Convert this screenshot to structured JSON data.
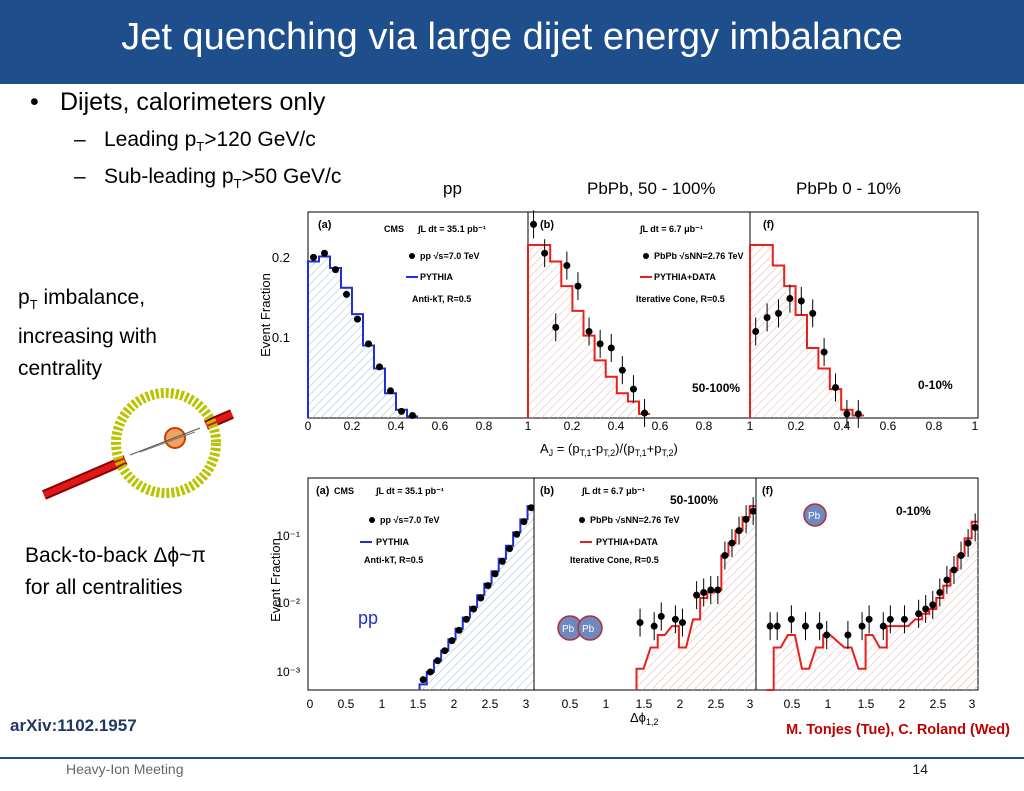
{
  "slide": {
    "title": "Jet quenching via large dijet energy imbalance",
    "bullet_main": "Dijets, calorimeters only",
    "sub1_pre": "Leading p",
    "sub1_sub": "T",
    "sub1_post": ">120 GeV/c",
    "sub2_pre": "Sub-leading p",
    "sub2_sub": "T",
    "sub2_post": ">50 GeV/c",
    "pt_line1_pre": "p",
    "pt_line1_sub": "T",
    "pt_line1_post": " imbalance,",
    "pt_line2": "increasing with",
    "pt_line3": "centrality",
    "b2b_line1": "Back-to-back Δϕ~π",
    "b2b_line2": "for all centralities",
    "col_pp": "pp",
    "col_mid": "PbPb, 50 - 100%",
    "col_cen": "PbPb 0 - 10%",
    "arxiv": "arXiv:1102.1957",
    "authors": "M. Tonjes (Tue), C. Roland (Wed)",
    "footer_left": "Heavy-Ion Meeting",
    "page_number": "14",
    "pp_blue_label": "pp",
    "pbpb_badge": "Pb Pb",
    "pbpb_badge_left": "Pb",
    "pbpb_badge_right": "Pb",
    "pbpb_badge_top": "Pb"
  },
  "colors": {
    "title_bar": "#1f4e8c",
    "arxiv": "#1f3864",
    "authors": "#c00000",
    "pythia_blue": "#1f2fd0",
    "data_red": "#e8201b"
  },
  "chart_data": [
    {
      "type": "histogram",
      "panel": "(a)",
      "texts": [
        "CMS",
        "∫L dt = 35.1 pb⁻¹",
        "pp √s=7.0 TeV",
        "PYTHIA",
        "Anti-k_T, R=0.5"
      ],
      "xlabel": "A_J = (p_T,1 - p_T,2)/(p_T,1 + p_T,2)",
      "ylabel": "Event Fraction",
      "xlim": [
        0,
        1
      ],
      "ylim": [
        0,
        0.25
      ],
      "x": [
        0.025,
        0.075,
        0.125,
        0.175,
        0.225,
        0.275,
        0.325,
        0.375,
        0.425,
        0.475
      ],
      "data": [
        0.195,
        0.2,
        0.18,
        0.15,
        0.12,
        0.09,
        0.062,
        0.033,
        0.008,
        0.003
      ],
      "pythia": [
        0.19,
        0.196,
        0.182,
        0.158,
        0.126,
        0.088,
        0.06,
        0.03,
        0.01,
        0.002
      ]
    },
    {
      "type": "histogram",
      "panel": "(b)",
      "texts": [
        "∫L dt = 6.7 μb⁻¹",
        "PbPb √s_NN=2.76 TeV",
        "PYTHIA+DATA",
        "Iterative Cone, R=0.5",
        "50-100%"
      ],
      "xlim": [
        0,
        1
      ],
      "ylim": [
        0,
        0.25
      ],
      "x": [
        0.025,
        0.075,
        0.125,
        0.175,
        0.225,
        0.275,
        0.325,
        0.375,
        0.425,
        0.475,
        0.525
      ],
      "data": [
        0.235,
        0.2,
        0.11,
        0.185,
        0.16,
        0.105,
        0.09,
        0.085,
        0.058,
        0.035,
        0.006
      ],
      "pythia_data": [
        0.21,
        0.21,
        0.19,
        0.16,
        0.13,
        0.1,
        0.07,
        0.05,
        0.03,
        0.02,
        0.005
      ]
    },
    {
      "type": "histogram",
      "panel": "(f)",
      "texts": [
        "0-10%"
      ],
      "xlim": [
        0,
        1
      ],
      "ylim": [
        0,
        0.25
      ],
      "x": [
        0.025,
        0.075,
        0.125,
        0.175,
        0.225,
        0.275,
        0.325,
        0.375,
        0.425,
        0.475
      ],
      "data": [
        0.105,
        0.122,
        0.127,
        0.145,
        0.142,
        0.127,
        0.08,
        0.037,
        0.005,
        0.005
      ],
      "pythia_data": [
        0.21,
        0.21,
        0.185,
        0.16,
        0.125,
        0.085,
        0.06,
        0.035,
        0.01,
        0.003
      ]
    },
    {
      "type": "histogram",
      "panel": "(a) lower",
      "texts": [
        "CMS",
        "∫L dt = 35.1 pb⁻¹",
        "pp √s=7.0 TeV",
        "PYTHIA",
        "Anti-k_T, R=0.5"
      ],
      "xlabel": "Δϕ_1,2",
      "ylabel": "Event Fraction",
      "log_y": true,
      "xlim": [
        0,
        3.14
      ],
      "ylim": [
        0.0005,
        0.5
      ],
      "x": [
        1.6,
        1.7,
        1.8,
        1.9,
        2.0,
        2.1,
        2.2,
        2.3,
        2.4,
        2.5,
        2.6,
        2.7,
        2.8,
        2.9,
        3.0,
        3.1
      ],
      "data": [
        0.0007,
        0.0009,
        0.0013,
        0.0018,
        0.0025,
        0.0035,
        0.005,
        0.007,
        0.01,
        0.015,
        0.022,
        0.033,
        0.05,
        0.08,
        0.12,
        0.19
      ],
      "pythia": [
        0.0006,
        0.0009,
        0.0013,
        0.0018,
        0.0026,
        0.0037,
        0.0053,
        0.0075,
        0.011,
        0.016,
        0.024,
        0.036,
        0.055,
        0.085,
        0.13,
        0.2
      ]
    },
    {
      "type": "histogram",
      "panel": "(b) lower",
      "texts": [
        "∫L dt = 6.7 μb⁻¹",
        "PbPb √s_NN=2.76 TeV",
        "PYTHIA+DATA",
        "Iterative Cone, R=0.5",
        "50-100%"
      ],
      "log_y": true,
      "xlim": [
        0,
        3.14
      ],
      "ylim": [
        0.0005,
        0.5
      ],
      "x": [
        1.5,
        1.7,
        1.8,
        2.0,
        2.1,
        2.3,
        2.4,
        2.5,
        2.6,
        2.7,
        2.8,
        2.9,
        3.0,
        3.1
      ],
      "data": [
        0.0045,
        0.004,
        0.0055,
        0.005,
        0.0045,
        0.011,
        0.012,
        0.013,
        0.013,
        0.04,
        0.06,
        0.09,
        0.13,
        0.17
      ],
      "pythia_data": [
        0.001,
        0.002,
        0.003,
        0.004,
        0.002,
        0.005,
        0.01,
        0.012,
        0.013,
        0.04,
        0.06,
        0.09,
        0.14,
        0.2
      ]
    },
    {
      "type": "histogram",
      "panel": "(f) lower",
      "texts": [
        "0-10%"
      ],
      "log_y": true,
      "xlim": [
        0,
        3.14
      ],
      "ylim": [
        0.0005,
        0.5
      ],
      "x": [
        0.2,
        0.3,
        0.5,
        0.7,
        0.9,
        1.0,
        1.3,
        1.5,
        1.6,
        1.8,
        1.9,
        2.1,
        2.3,
        2.4,
        2.5,
        2.6,
        2.7,
        2.8,
        2.9,
        3.0,
        3.1
      ],
      "data": [
        0.004,
        0.004,
        0.005,
        0.004,
        0.004,
        0.003,
        0.003,
        0.004,
        0.005,
        0.004,
        0.005,
        0.005,
        0.006,
        0.007,
        0.008,
        0.012,
        0.018,
        0.025,
        0.04,
        0.06,
        0.1
      ],
      "pythia_data": [
        0.0005,
        0.002,
        0.003,
        0.001,
        0.002,
        0.003,
        0.002,
        0.001,
        0.003,
        0.002,
        0.004,
        0.004,
        0.005,
        0.006,
        0.007,
        0.01,
        0.015,
        0.025,
        0.04,
        0.07,
        0.12
      ]
    }
  ]
}
